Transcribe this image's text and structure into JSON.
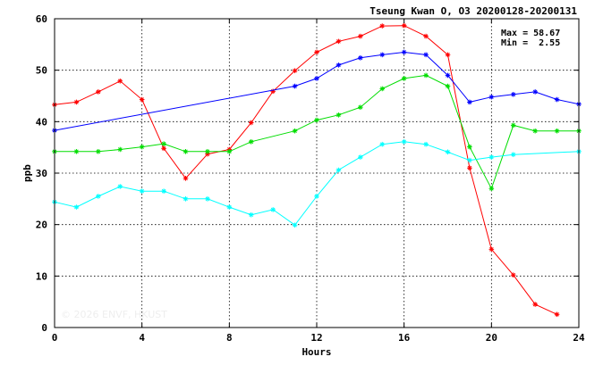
{
  "chart_data": {
    "type": "line",
    "title": "Tseung Kwan O, O3 20200128-20200131",
    "xlabel": "Hours",
    "ylabel": "ppb",
    "xlim": [
      0,
      24
    ],
    "ylim": [
      0,
      60
    ],
    "x_ticks": [
      "0",
      "4",
      "8",
      "12",
      "16",
      "20",
      "24"
    ],
    "y_ticks": [
      "0",
      "10",
      "20",
      "30",
      "40",
      "50",
      "60"
    ],
    "grid": true,
    "stats": {
      "max": "Max = 58.67",
      "min": "Min =  2.55"
    },
    "watermark": "© 2026 ENVF, HKUST",
    "series": [
      {
        "color": "#ff0000",
        "x": [
          0,
          1,
          2,
          3,
          4,
          5,
          6,
          7,
          8,
          9,
          10,
          11,
          12,
          13,
          14,
          15,
          16,
          17,
          18,
          19,
          20,
          21,
          22,
          23
        ],
        "values": [
          43.3,
          43.8,
          45.8,
          47.9,
          44.3,
          34.8,
          29.0,
          33.7,
          34.6,
          39.8,
          45.9,
          49.9,
          53.5,
          55.6,
          56.6,
          58.6,
          58.67,
          56.6,
          53.0,
          31.0,
          15.2,
          10.2,
          4.5,
          2.55
        ]
      },
      {
        "color": "#0000ff",
        "x": [
          0,
          11,
          12,
          13,
          14,
          15,
          16,
          17,
          18,
          19,
          20,
          21,
          22,
          23,
          24
        ],
        "values": [
          38.3,
          46.9,
          48.4,
          51.0,
          52.4,
          53.0,
          53.5,
          53.0,
          49.0,
          43.8,
          44.8,
          45.3,
          45.8,
          44.3,
          43.4
        ]
      },
      {
        "color": "#00dd00",
        "x": [
          0,
          1,
          2,
          3,
          4,
          5,
          6,
          7,
          8,
          9,
          11,
          12,
          13,
          14,
          15,
          16,
          17,
          18,
          19,
          20,
          21,
          22,
          23,
          24
        ],
        "values": [
          34.2,
          34.2,
          34.2,
          34.6,
          35.1,
          35.7,
          34.2,
          34.2,
          34.2,
          36.1,
          38.2,
          40.3,
          41.3,
          42.8,
          46.4,
          48.4,
          49.0,
          46.9,
          35.1,
          27.0,
          39.3,
          38.2,
          38.2,
          38.2
        ]
      },
      {
        "color": "#00ffff",
        "x": [
          0,
          1,
          2,
          3,
          4,
          5,
          6,
          7,
          8,
          9,
          10,
          11,
          12,
          13,
          14,
          15,
          16,
          17,
          18,
          19,
          20,
          21,
          24
        ],
        "values": [
          24.4,
          23.4,
          25.5,
          27.4,
          26.5,
          26.5,
          25.0,
          25.0,
          23.4,
          21.9,
          22.9,
          19.9,
          25.5,
          30.6,
          33.1,
          35.6,
          36.1,
          35.6,
          34.1,
          32.5,
          33.1,
          33.6,
          34.2
        ]
      }
    ]
  }
}
